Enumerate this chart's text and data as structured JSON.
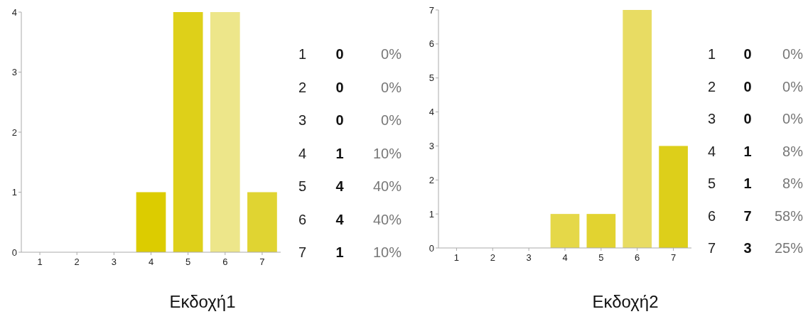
{
  "chart_data": [
    {
      "type": "bar",
      "title": "Εκδοχή1",
      "categories": [
        "1",
        "2",
        "3",
        "4",
        "5",
        "6",
        "7"
      ],
      "values": [
        0,
        0,
        0,
        1,
        4,
        4,
        1
      ],
      "colors": [
        "#dccc00",
        "#dccc00",
        "#dccc00",
        "#dccc00",
        "#ded019",
        "#ede68a",
        "#e0d432"
      ],
      "ylim": [
        0,
        4
      ],
      "yticks": [
        0,
        1,
        2,
        3,
        4
      ],
      "grid": false,
      "annotations": [
        "0",
        "0%",
        "0",
        "0%",
        "0",
        "0%",
        "1",
        "10%",
        "4",
        "40%",
        "4",
        "40%",
        "1",
        "10%"
      ]
    },
    {
      "type": "bar",
      "title": "Εκδοχή2",
      "categories": [
        "1",
        "2",
        "3",
        "4",
        "5",
        "6",
        "7"
      ],
      "values": [
        0,
        0,
        0,
        1,
        1,
        7,
        3
      ],
      "colors": [
        "#e5d848",
        "#e5d848",
        "#e5d848",
        "#e5d848",
        "#e2d330",
        "#e8dc63",
        "#ddcf1a"
      ],
      "ylim": [
        0,
        7
      ],
      "yticks": [
        0,
        1,
        2,
        3,
        4,
        5,
        6,
        7
      ],
      "grid": false,
      "annotations": [
        "0",
        "0%",
        "0",
        "0%",
        "0",
        "0%",
        "1",
        "8%",
        "1",
        "8%",
        "7",
        "58%",
        "3",
        "25%"
      ]
    }
  ]
}
